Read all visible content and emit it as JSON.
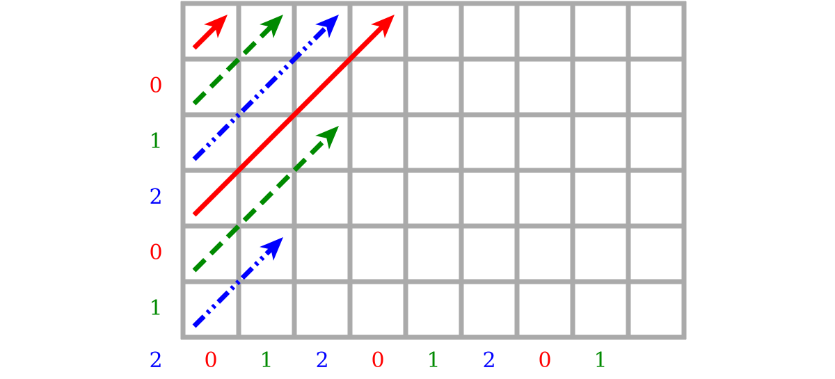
{
  "grid": {
    "columns": 9,
    "rows": 6,
    "line_color": "#aaaaaa"
  },
  "colors": {
    "c0": "#ff0000",
    "c1": "#008a00",
    "c2": "#0000ff"
  },
  "row_labels": [
    {
      "text": "0",
      "color": "#ff0000"
    },
    {
      "text": "1",
      "color": "#008a00"
    },
    {
      "text": "2",
      "color": "#0000ff"
    },
    {
      "text": "0",
      "color": "#ff0000"
    },
    {
      "text": "1",
      "color": "#008a00"
    }
  ],
  "corner_label": {
    "text": "2",
    "color": "#0000ff"
  },
  "column_labels": [
    {
      "text": "0",
      "color": "#ff0000"
    },
    {
      "text": "1",
      "color": "#008a00"
    },
    {
      "text": "2",
      "color": "#0000ff"
    },
    {
      "text": "0",
      "color": "#ff0000"
    },
    {
      "text": "1",
      "color": "#008a00"
    },
    {
      "text": "2",
      "color": "#0000ff"
    },
    {
      "text": "0",
      "color": "#ff0000"
    },
    {
      "text": "1",
      "color": "#008a00"
    }
  ],
  "arrows": [
    {
      "name": "red-arrow-short",
      "color": "#ff0000",
      "style": "solid",
      "from": [
        0.2,
        0.8
      ],
      "to": [
        0.8,
        0.2
      ]
    },
    {
      "name": "green-arrow-top",
      "color": "#008a00",
      "style": "dashed",
      "from": [
        0.2,
        1.8
      ],
      "to": [
        1.8,
        0.2
      ]
    },
    {
      "name": "blue-arrow-top",
      "color": "#0000ff",
      "style": "dashdotdot",
      "from": [
        0.2,
        2.8
      ],
      "to": [
        2.8,
        0.2
      ]
    },
    {
      "name": "red-arrow-long",
      "color": "#ff0000",
      "style": "solid",
      "from": [
        0.2,
        3.8
      ],
      "to": [
        3.8,
        0.2
      ]
    },
    {
      "name": "green-arrow-middle",
      "color": "#008a00",
      "style": "dashed",
      "from": [
        0.2,
        4.8
      ],
      "to": [
        2.8,
        2.2
      ]
    },
    {
      "name": "blue-arrow-bottom",
      "color": "#0000ff",
      "style": "dashdotdot",
      "from": [
        0.2,
        5.8
      ],
      "to": [
        1.8,
        4.2
      ]
    }
  ]
}
